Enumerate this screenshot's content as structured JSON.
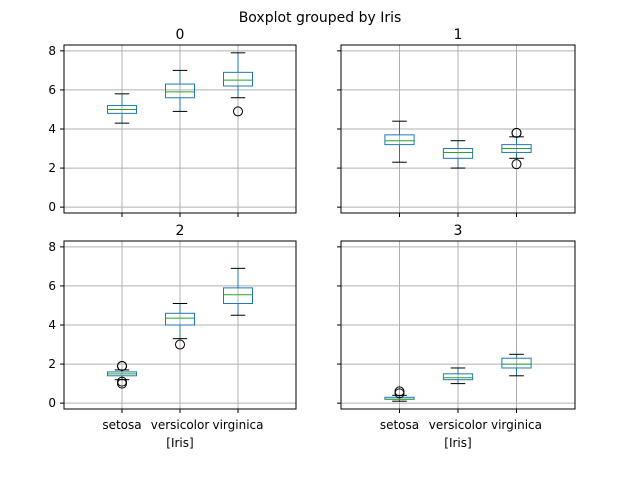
{
  "figure": {
    "suptitle": "Boxplot grouped by Iris"
  },
  "chart_data": [
    {
      "type": "box",
      "title": "0",
      "categories": [
        "setosa",
        "versicolor",
        "virginica"
      ],
      "xlabel": "",
      "ylim": [
        -0.3,
        8.3
      ],
      "yticks": [
        0,
        2,
        4,
        6,
        8
      ],
      "grid": true,
      "boxes": [
        {
          "category": "setosa",
          "whislo": 4.3,
          "q1": 4.8,
          "med": 5.0,
          "q3": 5.2,
          "whishi": 5.8,
          "fliers": []
        },
        {
          "category": "versicolor",
          "whislo": 4.9,
          "q1": 5.6,
          "med": 5.9,
          "q3": 6.3,
          "whishi": 7.0,
          "fliers": []
        },
        {
          "category": "virginica",
          "whislo": 5.6,
          "q1": 6.2,
          "med": 6.5,
          "q3": 6.9,
          "whishi": 7.9,
          "fliers": [
            4.9
          ]
        }
      ]
    },
    {
      "type": "box",
      "title": "1",
      "categories": [
        "setosa",
        "versicolor",
        "virginica"
      ],
      "xlabel": "",
      "ylim": [
        -0.3,
        8.3
      ],
      "yticks": [
        0,
        2,
        4,
        6,
        8
      ],
      "grid": true,
      "boxes": [
        {
          "category": "setosa",
          "whislo": 2.3,
          "q1": 3.2,
          "med": 3.4,
          "q3": 3.7,
          "whishi": 4.4,
          "fliers": []
        },
        {
          "category": "versicolor",
          "whislo": 2.0,
          "q1": 2.5,
          "med": 2.8,
          "q3": 3.0,
          "whishi": 3.4,
          "fliers": []
        },
        {
          "category": "virginica",
          "whislo": 2.5,
          "q1": 2.8,
          "med": 3.0,
          "q3": 3.2,
          "whishi": 3.6,
          "fliers": [
            3.8,
            3.8,
            2.2
          ]
        }
      ]
    },
    {
      "type": "box",
      "title": "2",
      "categories": [
        "setosa",
        "versicolor",
        "virginica"
      ],
      "xlabel": "[Iris]",
      "ylim": [
        -0.3,
        8.3
      ],
      "yticks": [
        0,
        2,
        4,
        6,
        8
      ],
      "grid": true,
      "boxes": [
        {
          "category": "setosa",
          "whislo": 1.2,
          "q1": 1.4,
          "med": 1.5,
          "q3": 1.6,
          "whishi": 1.7,
          "fliers": [
            1.9,
            1.9,
            1.0,
            1.1
          ]
        },
        {
          "category": "versicolor",
          "whislo": 3.3,
          "q1": 4.0,
          "med": 4.35,
          "q3": 4.6,
          "whishi": 5.1,
          "fliers": [
            3.0
          ]
        },
        {
          "category": "virginica",
          "whislo": 4.5,
          "q1": 5.1,
          "med": 5.55,
          "q3": 5.9,
          "whishi": 6.9,
          "fliers": []
        }
      ]
    },
    {
      "type": "box",
      "title": "3",
      "categories": [
        "setosa",
        "versicolor",
        "virginica"
      ],
      "xlabel": "[Iris]",
      "ylim": [
        -0.3,
        8.3
      ],
      "yticks": [
        0,
        2,
        4,
        6,
        8
      ],
      "grid": true,
      "boxes": [
        {
          "category": "setosa",
          "whislo": 0.1,
          "q1": 0.2,
          "med": 0.2,
          "q3": 0.3,
          "whishi": 0.4,
          "fliers": [
            0.5,
            0.6
          ]
        },
        {
          "category": "versicolor",
          "whislo": 1.0,
          "q1": 1.2,
          "med": 1.3,
          "q3": 1.5,
          "whishi": 1.8,
          "fliers": []
        },
        {
          "category": "virginica",
          "whislo": 1.4,
          "q1": 1.8,
          "med": 2.0,
          "q3": 2.3,
          "whishi": 2.5,
          "fliers": []
        }
      ]
    }
  ],
  "colors": {
    "box": "#1f77b4",
    "median": "#2ca02c",
    "grid": "#b0b0b0",
    "axis": "#000000"
  }
}
